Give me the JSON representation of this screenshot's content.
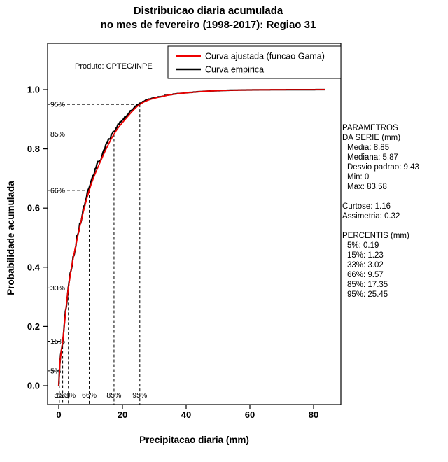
{
  "title": {
    "line1": "Distribuicao diaria acumulada",
    "line2": "no mes de fevereiro (1998-2017): Regiao 31"
  },
  "watermark": "Produto: CPTEC/INPE",
  "side_panel": {
    "header1": "PARAMETROS",
    "header2": "DA SERIE (mm)",
    "media": "Media: 8.85",
    "mediana": "Mediana: 5.87",
    "desvio": "Desvio padrao: 9.43",
    "min": "Min: 0",
    "max": "Max: 83.58",
    "curtose": "Curtose: 1.16",
    "assimetria": "Assimetria: 0.32",
    "percentis_header": "PERCENTIS (mm)",
    "p5": "5%: 0.19",
    "p15": "15%: 1.23",
    "p33": "33%: 3.02",
    "p66": "66%: 9.57",
    "p85": "85%: 17.35",
    "p95": "95%: 25.45"
  },
  "chart_data": {
    "type": "line",
    "title": "Distribuicao diaria acumulada no mes de fevereiro (1998-2017): Regiao 31",
    "xlabel": "Precipitacao diaria (mm)",
    "ylabel": "Probabilidade acumulada",
    "xlim": [
      0,
      88
    ],
    "ylim": [
      0,
      1.06
    ],
    "x_ticks": [
      0,
      20,
      40,
      60,
      80
    ],
    "y_ticks": [
      0,
      0.2,
      0.4,
      0.6,
      0.8,
      1.0
    ],
    "grid": false,
    "legend_position": "top-right-inside",
    "series": [
      {
        "name": "Curva ajustada (funcao Gama)",
        "color": "#ee0000",
        "role": "gamma_cdf_fit"
      },
      {
        "name": "Curva empirica",
        "color": "#000000",
        "role": "empirical_cdf"
      }
    ],
    "cdf_anchor_points": {
      "x": [
        0,
        0.19,
        1.23,
        3.02,
        5.87,
        9.57,
        13.2,
        17.35,
        21.3,
        25.45,
        33,
        42,
        55,
        83.58
      ],
      "p": [
        0,
        0.05,
        0.15,
        0.33,
        0.5,
        0.66,
        0.76,
        0.85,
        0.905,
        0.95,
        0.978,
        0.991,
        0.998,
        1.0
      ]
    },
    "percentile_guides": [
      {
        "label": "5%",
        "p": 0.05,
        "x": 0.19
      },
      {
        "label": "15%",
        "p": 0.15,
        "x": 1.23
      },
      {
        "label": "33%",
        "p": 0.33,
        "x": 3.02
      },
      {
        "label": "66%",
        "p": 0.66,
        "x": 9.57
      },
      {
        "label": "85%",
        "p": 0.85,
        "x": 17.35
      },
      {
        "label": "95%",
        "p": 0.95,
        "x": 25.45
      }
    ],
    "stats": {
      "media": 8.85,
      "mediana": 5.87,
      "desvio_padrao": 9.43,
      "min": 0,
      "max": 83.58,
      "curtose": 1.16,
      "assimetria": 0.32
    }
  }
}
